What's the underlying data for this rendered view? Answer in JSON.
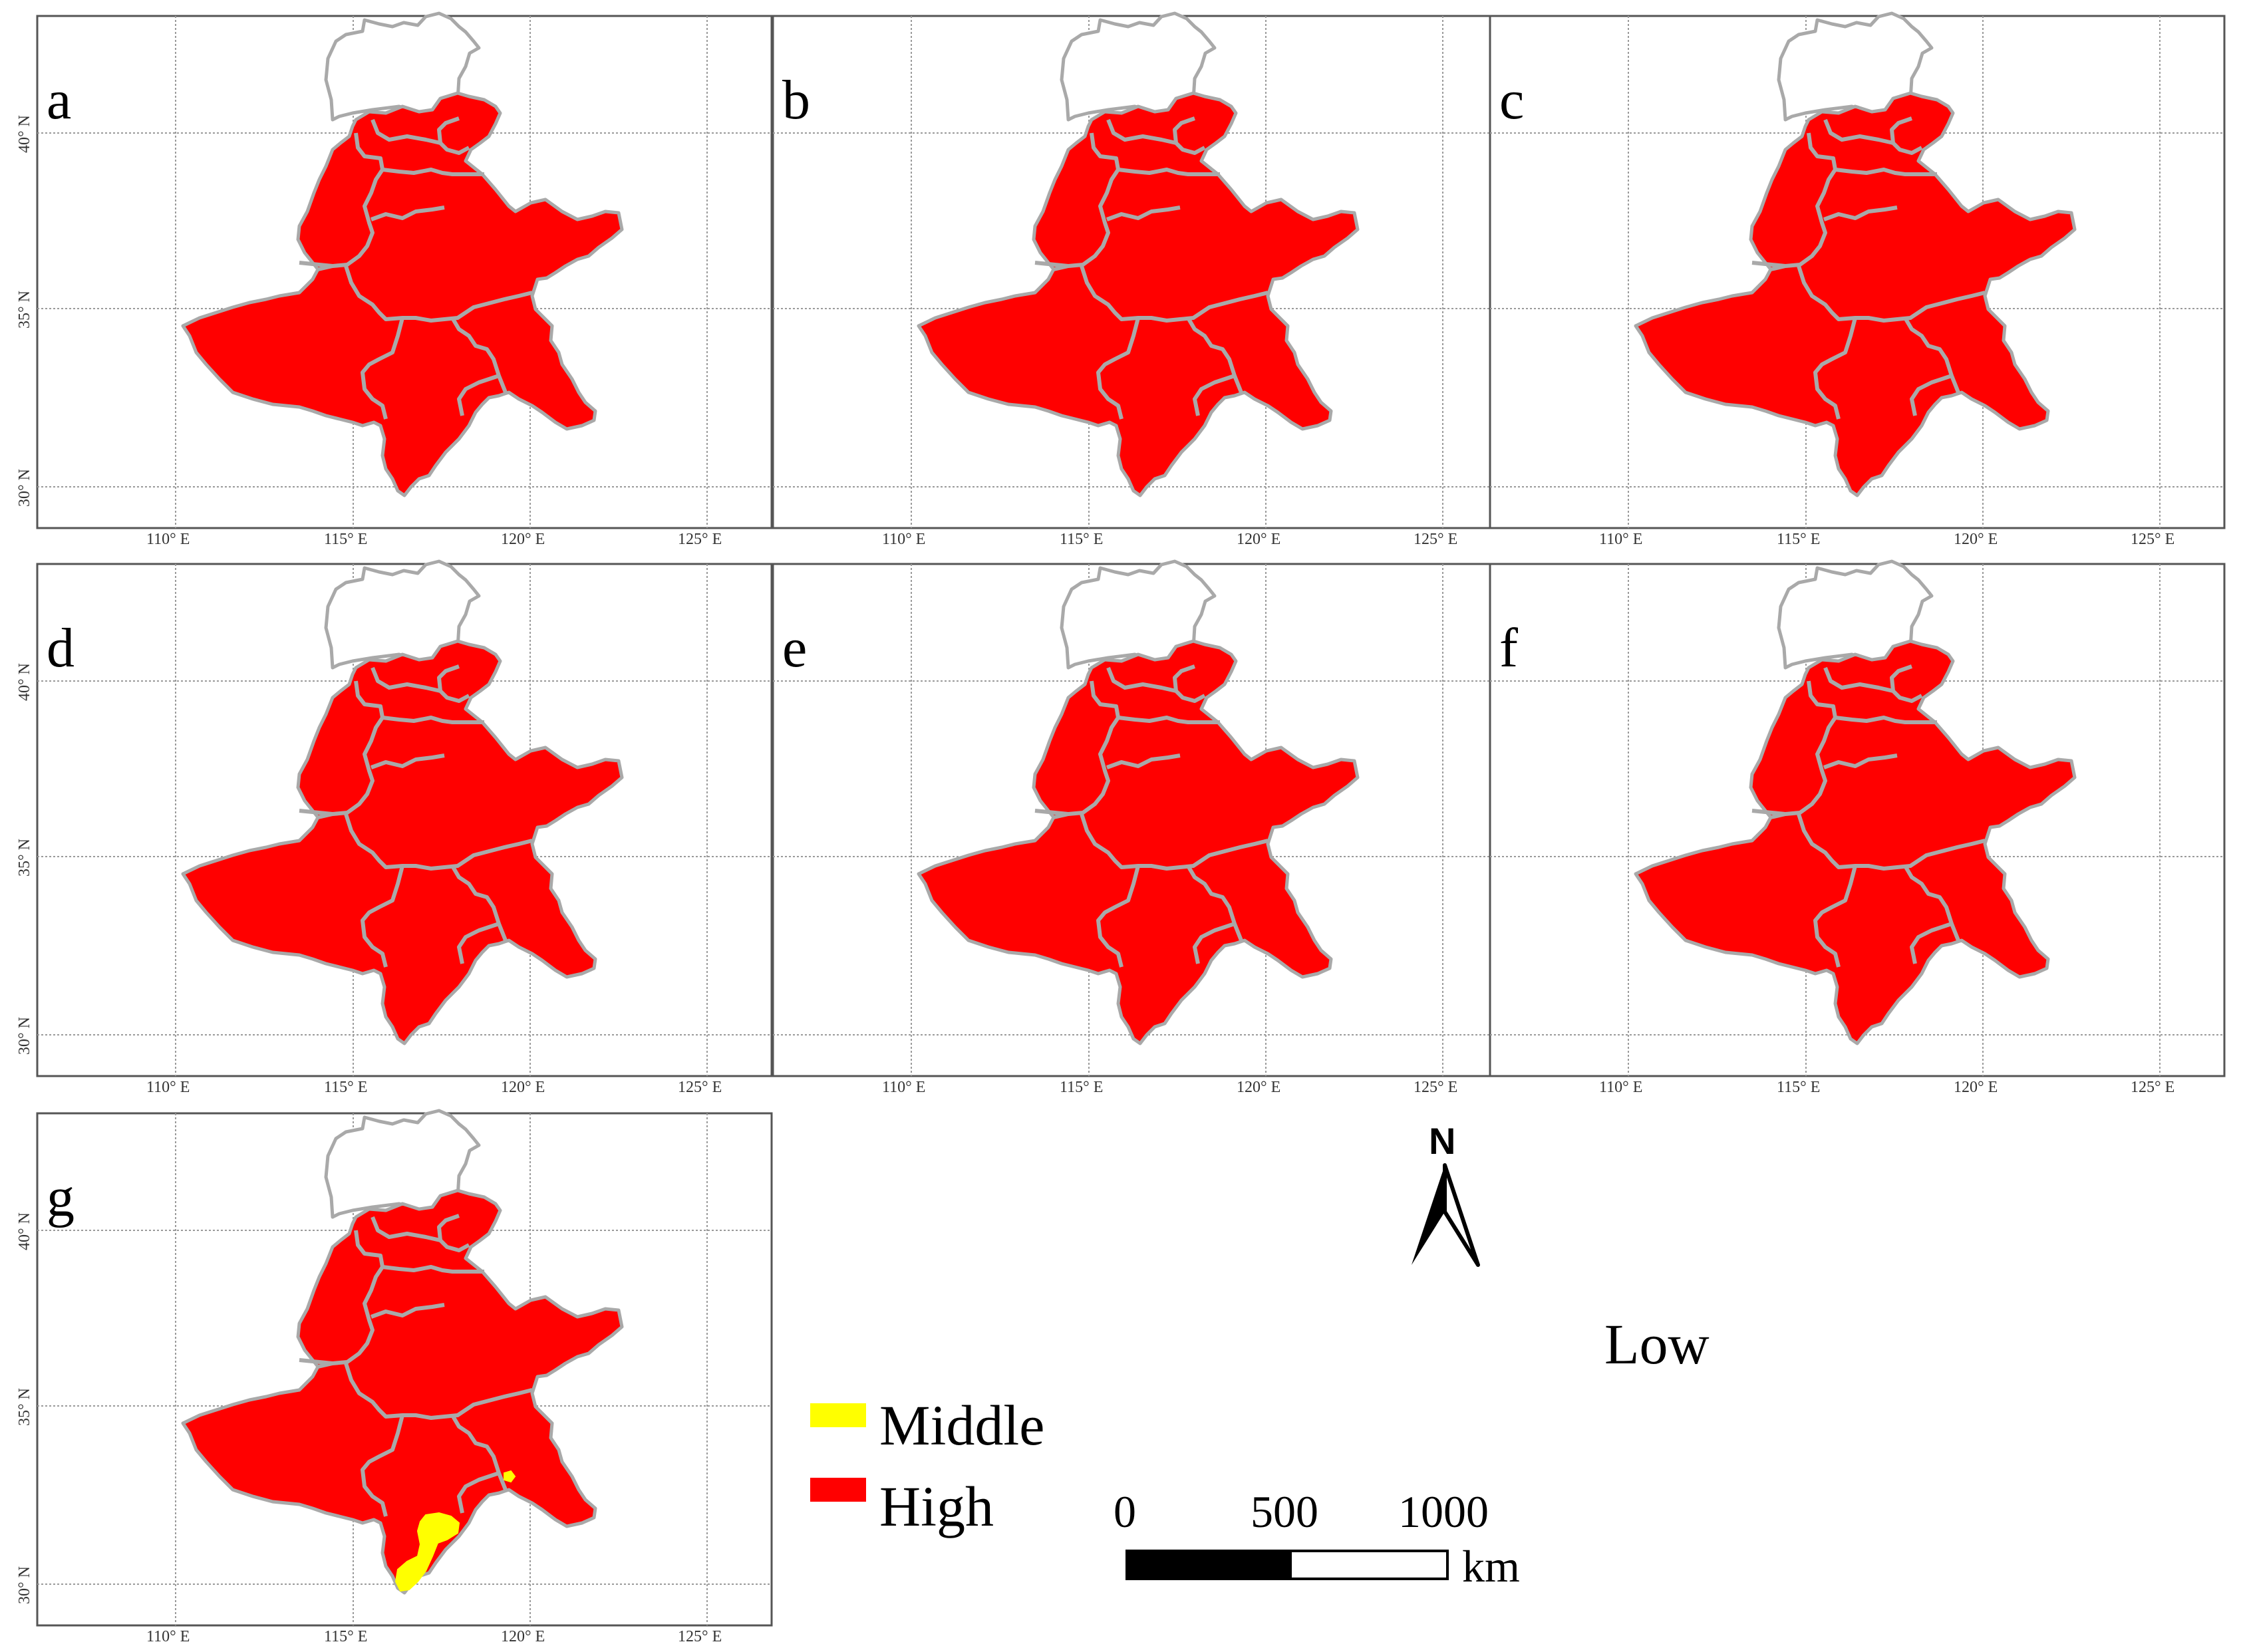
{
  "map": {
    "panels": [
      "a",
      "b",
      "c",
      "d",
      "e",
      "f",
      "g"
    ],
    "longitude_ticks": [
      "110° E",
      "115° E",
      "120° E",
      "125° E"
    ],
    "latitude_ticks": [
      "40° N",
      "35° N",
      "30° N"
    ],
    "fill_colors": {
      "high": "#ff0000",
      "middle": "#ffff00",
      "border": "#a9a9a9"
    }
  },
  "legend": {
    "title": "Low",
    "items": [
      {
        "label": "Middle",
        "color": "#ffff00"
      },
      {
        "label": "High",
        "color": "#ff0000"
      }
    ]
  },
  "north_arrow": {
    "label": "N"
  },
  "scale_bar": {
    "ticks": [
      "0",
      "500",
      "1000"
    ],
    "unit": "km"
  }
}
